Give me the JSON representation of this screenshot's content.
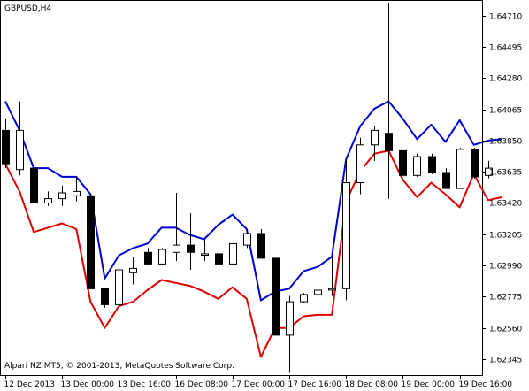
{
  "chart_data": {
    "type": "candlestick",
    "symbol_label": "GBPUSD,H4",
    "footer": "Alpari NZ MT5, © 2001-2013, MetaQuotes Software Corp.",
    "colors": {
      "background": "#ffffff",
      "frame": "#000000",
      "upper_line": "#0000cc",
      "lower_line": "#dd0000",
      "bull_candle": "#ffffff",
      "bear_candle": "#000000"
    },
    "ylim": [
      1.62235,
      1.64812
    ],
    "y_ticks": [
      1.6471,
      1.64495,
      1.6428,
      1.64065,
      1.6385,
      1.63635,
      1.6342,
      1.63205,
      1.6299,
      1.62775,
      1.6256,
      1.62345
    ],
    "y_tick_labels": [
      "1.64710",
      "1.64495",
      "1.64280",
      "1.64065",
      "1.63850",
      "1.63635",
      "1.63420",
      "1.63205",
      "1.62990",
      "1.62775",
      "1.62560",
      "1.62345"
    ],
    "x_tick_labels": [
      {
        "bar": 0,
        "label": "12 Dec 2013"
      },
      {
        "bar": 4,
        "label": "13 Dec 00:00"
      },
      {
        "bar": 8,
        "label": "13 Dec 16:00"
      },
      {
        "bar": 12,
        "label": "16 Dec 08:00"
      },
      {
        "bar": 16,
        "label": "17 Dec 00:00"
      },
      {
        "bar": 20,
        "label": "17 Dec 16:00"
      },
      {
        "bar": 24,
        "label": "18 Dec 08:00"
      },
      {
        "bar": 28,
        "label": "19 Dec 00:00"
      },
      {
        "bar": 32,
        "label": "19 Dec 16:00"
      }
    ],
    "candles": [
      {
        "o": 1.6392,
        "h": 1.64,
        "l": 1.6366,
        "c": 1.6369
      },
      {
        "o": 1.6365,
        "h": 1.6412,
        "l": 1.6361,
        "c": 1.6392
      },
      {
        "o": 1.6366,
        "h": 1.6368,
        "l": 1.6342,
        "c": 1.6342
      },
      {
        "o": 1.6342,
        "h": 1.635,
        "l": 1.634,
        "c": 1.6345
      },
      {
        "o": 1.6345,
        "h": 1.6354,
        "l": 1.634,
        "c": 1.6349
      },
      {
        "o": 1.6347,
        "h": 1.636,
        "l": 1.6343,
        "c": 1.635
      },
      {
        "o": 1.6347,
        "h": 1.6348,
        "l": 1.6283,
        "c": 1.6283
      },
      {
        "o": 1.6283,
        "h": 1.6283,
        "l": 1.627,
        "c": 1.6272
      },
      {
        "o": 1.6272,
        "h": 1.6299,
        "l": 1.6272,
        "c": 1.6296
      },
      {
        "o": 1.6294,
        "h": 1.6305,
        "l": 1.6286,
        "c": 1.6297
      },
      {
        "o": 1.6308,
        "h": 1.6311,
        "l": 1.6299,
        "c": 1.63
      },
      {
        "o": 1.63,
        "h": 1.6311,
        "l": 1.6299,
        "c": 1.631
      },
      {
        "o": 1.6308,
        "h": 1.6349,
        "l": 1.6302,
        "c": 1.6313
      },
      {
        "o": 1.6313,
        "h": 1.6335,
        "l": 1.6296,
        "c": 1.6308
      },
      {
        "o": 1.6306,
        "h": 1.6317,
        "l": 1.6302,
        "c": 1.6307
      },
      {
        "o": 1.6307,
        "h": 1.6309,
        "l": 1.6296,
        "c": 1.63
      },
      {
        "o": 1.63,
        "h": 1.6314,
        "l": 1.6299,
        "c": 1.6314
      },
      {
        "o": 1.6313,
        "h": 1.6324,
        "l": 1.6311,
        "c": 1.6321
      },
      {
        "o": 1.6321,
        "h": 1.6324,
        "l": 1.6304,
        "c": 1.6304
      },
      {
        "o": 1.6304,
        "h": 1.6304,
        "l": 1.6251,
        "c": 1.6251
      },
      {
        "o": 1.6251,
        "h": 1.6278,
        "l": 1.6225,
        "c": 1.6274
      },
      {
        "o": 1.6274,
        "h": 1.628,
        "l": 1.6273,
        "c": 1.6279
      },
      {
        "o": 1.6279,
        "h": 1.6283,
        "l": 1.6272,
        "c": 1.6282
      },
      {
        "o": 1.6282,
        "h": 1.6305,
        "l": 1.6278,
        "c": 1.6283
      },
      {
        "o": 1.6283,
        "h": 1.6372,
        "l": 1.6275,
        "c": 1.6356
      },
      {
        "o": 1.6356,
        "h": 1.6387,
        "l": 1.6348,
        "c": 1.6382
      },
      {
        "o": 1.6382,
        "h": 1.6395,
        "l": 1.6371,
        "c": 1.6392
      },
      {
        "o": 1.639,
        "h": 1.648,
        "l": 1.6345,
        "c": 1.6378
      },
      {
        "o": 1.6378,
        "h": 1.6378,
        "l": 1.6361,
        "c": 1.6361
      },
      {
        "o": 1.6361,
        "h": 1.6376,
        "l": 1.636,
        "c": 1.6374
      },
      {
        "o": 1.6374,
        "h": 1.6376,
        "l": 1.6362,
        "c": 1.6363
      },
      {
        "o": 1.6363,
        "h": 1.6366,
        "l": 1.6352,
        "c": 1.6352
      },
      {
        "o": 1.6352,
        "h": 1.638,
        "l": 1.6352,
        "c": 1.6379
      },
      {
        "o": 1.6379,
        "h": 1.638,
        "l": 1.6359,
        "c": 1.636
      },
      {
        "o": 1.6361,
        "h": 1.6371,
        "l": 1.6359,
        "c": 1.6366
      }
    ],
    "upper_line": [
      1.6412,
      1.6392,
      1.6366,
      1.6366,
      1.636,
      1.636,
      1.6348,
      1.629,
      1.6306,
      1.6311,
      1.6314,
      1.6325,
      1.6325,
      1.632,
      1.6317,
      1.6327,
      1.6334,
      1.6324,
      1.6275,
      1.6281,
      1.6283,
      1.6295,
      1.6298,
      1.6305,
      1.6372,
      1.6395,
      1.6407,
      1.6412,
      1.64,
      1.6386,
      1.6396,
      1.6384,
      1.6399,
      1.6382,
      1.6385,
      1.6386
    ],
    "lower_line": [
      1.6369,
      1.635,
      1.6322,
      1.6325,
      1.6328,
      1.6324,
      1.6274,
      1.6256,
      1.6271,
      1.6274,
      1.6282,
      1.6289,
      1.6287,
      1.6285,
      1.6281,
      1.6276,
      1.6284,
      1.6276,
      1.6236,
      1.6256,
      1.6256,
      1.6264,
      1.6265,
      1.6265,
      1.6343,
      1.6364,
      1.6376,
      1.6378,
      1.6358,
      1.6346,
      1.6356,
      1.6348,
      1.6339,
      1.6362,
      1.6344,
      1.6346
    ]
  }
}
